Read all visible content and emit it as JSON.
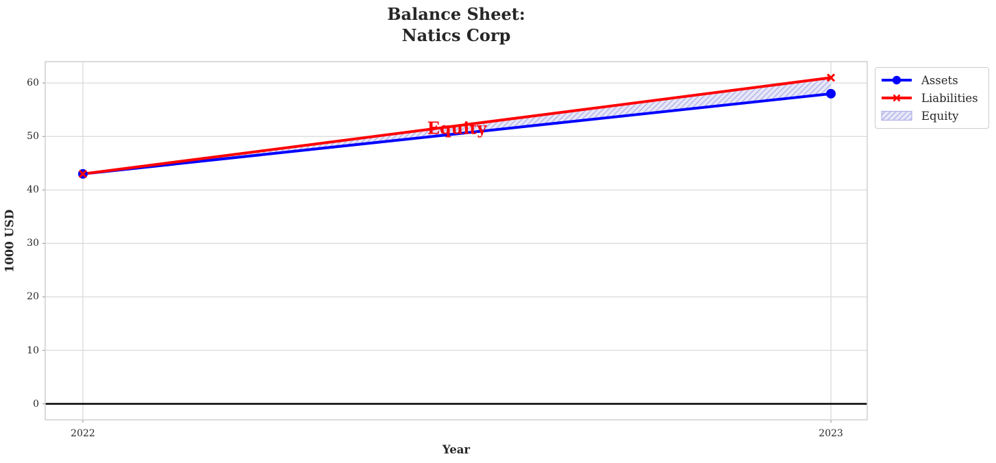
{
  "chart_data": {
    "type": "line",
    "title": "Balance Sheet:\nNatics Corp",
    "x": [
      "2022",
      "2023"
    ],
    "series": [
      {
        "name": "Assets",
        "values": [
          43,
          58
        ],
        "color": "#0000ff",
        "marker": "circle",
        "linewidth": 4
      },
      {
        "name": "Liabilities",
        "values": [
          43,
          61
        ],
        "color": "#ff0000",
        "marker": "x",
        "linewidth": 4
      }
    ],
    "fill_between": {
      "label": "Equity",
      "lower_series": "Assets",
      "upper_series": "Liabilities",
      "fill_color": "#e7e7f9",
      "hatch": "//",
      "hatch_color": "#b1b1e8"
    },
    "annotation": {
      "text": "Equity",
      "x": 2022.5,
      "y": 52,
      "color": "#ff0000"
    },
    "xlabel": "Year",
    "ylabel": "1000 USD",
    "yticks": [
      0,
      10,
      20,
      30,
      40,
      50,
      60
    ],
    "ylim": [
      -3,
      64
    ],
    "grid": true,
    "zero_line": true,
    "grid_color": "#d9d9d9",
    "border_color": "#cfcfcf",
    "zero_line_color": "#000000",
    "legend": {
      "position": "outside-upper-right",
      "items": [
        {
          "label": "Assets"
        },
        {
          "label": "Liabilities"
        },
        {
          "label": "Equity"
        }
      ]
    }
  }
}
